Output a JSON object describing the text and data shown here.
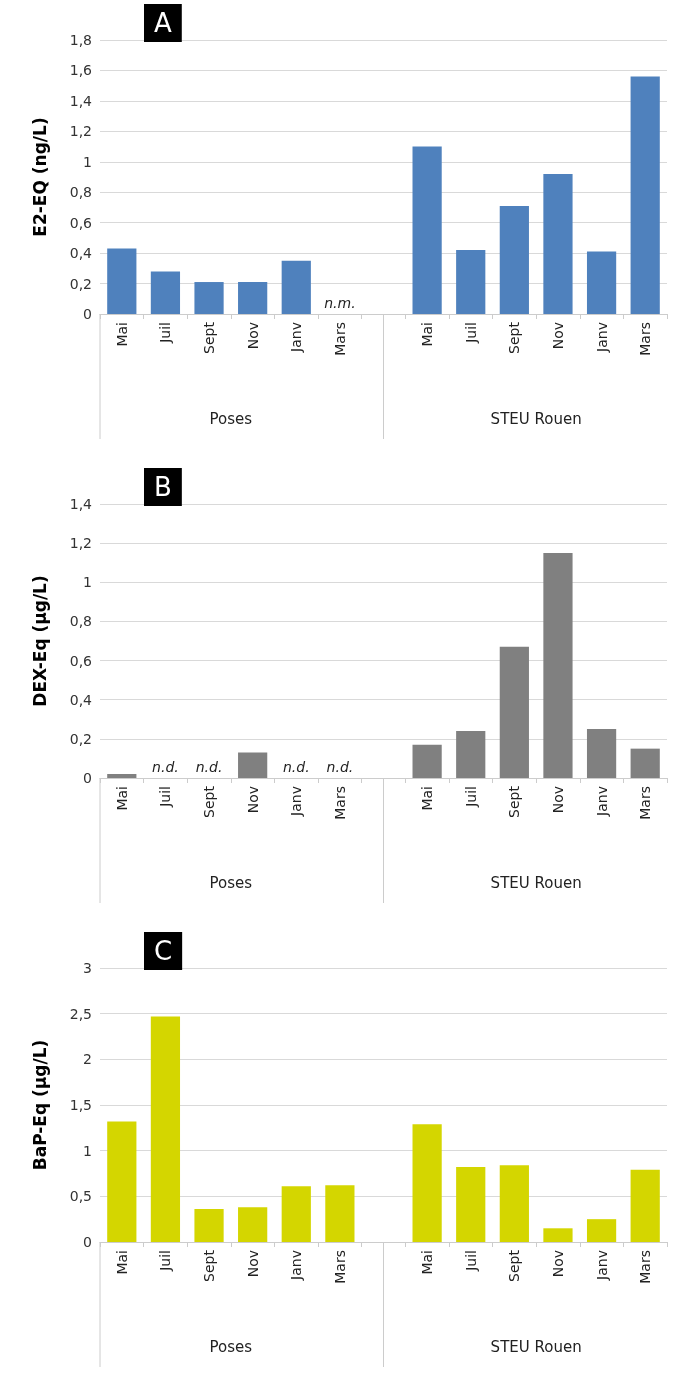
{
  "chart_data": [
    {
      "type": "bar",
      "title": "A",
      "ylabel": "E2-EQ (ng/L)",
      "categories": [
        "Mai",
        "Juil",
        "Sept",
        "Nov",
        "Janv",
        "Mars",
        null,
        "Mai",
        "Juil",
        "Sept",
        "Nov",
        "Janv",
        "Mars"
      ],
      "values": [
        0.43,
        0.28,
        0.21,
        0.21,
        0.35,
        null,
        null,
        1.1,
        0.42,
        0.71,
        0.92,
        0.41,
        1.56
      ],
      "value_labels": [
        null,
        null,
        null,
        null,
        null,
        "n.m.",
        null,
        null,
        null,
        null,
        null,
        null,
        null
      ],
      "color": "#4f81bd",
      "ylim": [
        0,
        1.8
      ],
      "yticks": [
        0,
        {
          "value": 0.2,
          "label": "0,2"
        },
        {
          "value": 0.4,
          "label": "0,4"
        },
        {
          "value": 0.6,
          "label": "0,6"
        },
        {
          "value": 0.8,
          "label": "0,8"
        },
        1,
        {
          "value": 1.2,
          "label": "1,2"
        },
        {
          "value": 1.4,
          "label": "1,4"
        },
        {
          "value": 1.6,
          "label": "1,6"
        },
        {
          "value": 1.8,
          "label": "1,8"
        }
      ],
      "annotations": [
        "Poses",
        "STEU Rouen"
      ],
      "grid": "y"
    },
    {
      "type": "bar",
      "title": "B",
      "ylabel": "DEX-Eq (µg/L)",
      "categories": [
        "Mai",
        "Juil",
        "Sept",
        "Nov",
        "Janv",
        "Mars",
        null,
        "Mai",
        "Juil",
        "Sept",
        "Nov",
        "Janv",
        "Mars"
      ],
      "values": [
        0.02,
        null,
        null,
        0.13,
        null,
        null,
        null,
        0.17,
        0.24,
        0.67,
        1.15,
        0.25,
        0.15
      ],
      "value_labels": [
        null,
        "n.d.",
        "n.d.",
        null,
        "n.d.",
        "n.d.",
        null,
        null,
        null,
        null,
        null,
        null,
        null
      ],
      "color": "#808080",
      "ylim": [
        0,
        1.4
      ],
      "yticks": [
        0,
        {
          "value": 0.2,
          "label": "0,2"
        },
        {
          "value": 0.4,
          "label": "0,4"
        },
        {
          "value": 0.6,
          "label": "0,6"
        },
        {
          "value": 0.8,
          "label": "0,8"
        },
        1,
        {
          "value": 1.2,
          "label": "1,2"
        },
        {
          "value": 1.4,
          "label": "1,4"
        }
      ],
      "annotations": [
        "Poses",
        "STEU Rouen"
      ],
      "grid": "y"
    },
    {
      "type": "bar",
      "title": "C",
      "ylabel": "BaP-Eq (µg/L)",
      "categories": [
        "Mai",
        "Juil",
        "Sept",
        "Nov",
        "Janv",
        "Mars",
        null,
        "Mai",
        "Juil",
        "Sept",
        "Nov",
        "Janv",
        "Mars"
      ],
      "values": [
        1.32,
        2.47,
        0.36,
        0.38,
        0.61,
        0.62,
        null,
        1.29,
        0.82,
        0.84,
        0.15,
        0.25,
        0.79
      ],
      "color": "#d4d600",
      "ylim": [
        0,
        3
      ],
      "yticks": [
        0,
        {
          "value": 0.5,
          "label": "0,5"
        },
        1,
        {
          "value": 1.5,
          "label": "1,5"
        },
        2,
        {
          "value": 2.5,
          "label": "2,5"
        },
        3
      ],
      "annotations": [
        "Poses",
        "STEU Rouen"
      ],
      "grid": "y"
    }
  ]
}
